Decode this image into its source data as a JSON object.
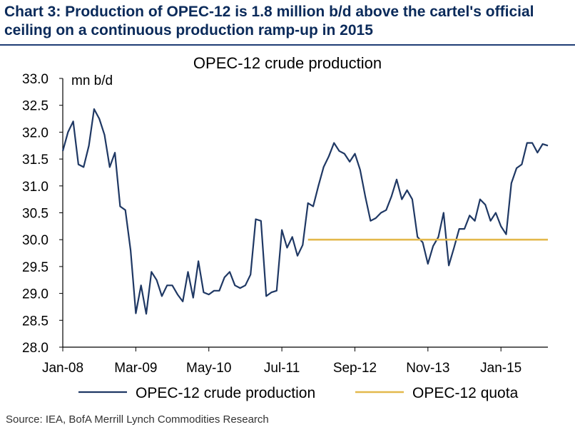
{
  "header": {
    "title": "Chart 3: Production of OPEC-12 is 1.8 million b/d above the cartel's official ceiling on a continuous production ramp-up in 2015"
  },
  "footer": {
    "source": "Source: IEA, BofA Merrill Lynch Commodities Research"
  },
  "colors": {
    "production": "#1f3864",
    "quota": "#e3b94c",
    "header_rule": "#1f3d75"
  },
  "chart_data": {
    "type": "line",
    "title": "OPEC-12 crude production",
    "ylabel": "mn b/d",
    "xlabel": "",
    "ylim": [
      28.0,
      33.0
    ],
    "y_ticks": [
      "28.0",
      "28.5",
      "29.0",
      "29.5",
      "30.0",
      "30.5",
      "31.0",
      "31.5",
      "32.0",
      "32.5",
      "33.0"
    ],
    "x_range": [
      "2008-01",
      "2015-10"
    ],
    "x_ticks": [
      "Jan-08",
      "Mar-09",
      "May-10",
      "Jul-11",
      "Sep-12",
      "Nov-13",
      "Jan-15"
    ],
    "legend_position": "bottom",
    "series": [
      {
        "name": "OPEC-12 crude production",
        "x": [
          "2008-01",
          "2008-02",
          "2008-03",
          "2008-04",
          "2008-05",
          "2008-06",
          "2008-07",
          "2008-08",
          "2008-09",
          "2008-10",
          "2008-11",
          "2008-12",
          "2009-01",
          "2009-02",
          "2009-03",
          "2009-04",
          "2009-05",
          "2009-06",
          "2009-07",
          "2009-08",
          "2009-09",
          "2009-10",
          "2009-11",
          "2009-12",
          "2010-01",
          "2010-02",
          "2010-03",
          "2010-04",
          "2010-05",
          "2010-06",
          "2010-07",
          "2010-08",
          "2010-09",
          "2010-10",
          "2010-11",
          "2010-12",
          "2011-01",
          "2011-02",
          "2011-03",
          "2011-04",
          "2011-05",
          "2011-06",
          "2011-07",
          "2011-08",
          "2011-09",
          "2011-10",
          "2011-11",
          "2011-12",
          "2012-01",
          "2012-02",
          "2012-03",
          "2012-04",
          "2012-05",
          "2012-06",
          "2012-07",
          "2012-08",
          "2012-09",
          "2012-10",
          "2012-11",
          "2012-12",
          "2013-01",
          "2013-02",
          "2013-03",
          "2013-04",
          "2013-05",
          "2013-06",
          "2013-07",
          "2013-08",
          "2013-09",
          "2013-10",
          "2013-11",
          "2013-12",
          "2014-01",
          "2014-02",
          "2014-03",
          "2014-04",
          "2014-05",
          "2014-06",
          "2014-07",
          "2014-08",
          "2014-09",
          "2014-10",
          "2014-11",
          "2014-12",
          "2015-01",
          "2015-02",
          "2015-03",
          "2015-04",
          "2015-05",
          "2015-06",
          "2015-07",
          "2015-08",
          "2015-09",
          "2015-10"
        ],
        "values": [
          31.65,
          32.0,
          32.2,
          31.4,
          31.35,
          31.75,
          32.43,
          32.25,
          31.95,
          31.35,
          31.62,
          30.62,
          30.55,
          29.8,
          28.63,
          29.15,
          28.62,
          29.4,
          29.25,
          28.95,
          29.15,
          29.15,
          28.98,
          28.85,
          29.4,
          28.92,
          29.6,
          29.02,
          28.98,
          29.05,
          29.05,
          29.3,
          29.4,
          29.15,
          29.1,
          29.15,
          29.35,
          30.38,
          30.35,
          28.95,
          29.02,
          29.05,
          30.18,
          29.85,
          30.05,
          29.7,
          29.9,
          30.68,
          30.62,
          31.0,
          31.35,
          31.55,
          31.8,
          31.65,
          31.6,
          31.45,
          31.6,
          31.3,
          30.8,
          30.35,
          30.4,
          30.5,
          30.55,
          30.8,
          31.12,
          30.75,
          30.92,
          30.75,
          30.05,
          29.95,
          29.55,
          29.88,
          30.05,
          30.5,
          29.52,
          29.85,
          30.2,
          30.2,
          30.45,
          30.35,
          30.75,
          30.65,
          30.35,
          30.5,
          30.25,
          30.1,
          31.05,
          31.33,
          31.4,
          31.8,
          31.8,
          31.62,
          31.78,
          31.75
        ]
      },
      {
        "name": "OPEC-12 quota",
        "x": [
          "2011-12",
          "2015-10"
        ],
        "values": [
          30.0,
          30.0
        ]
      }
    ]
  }
}
